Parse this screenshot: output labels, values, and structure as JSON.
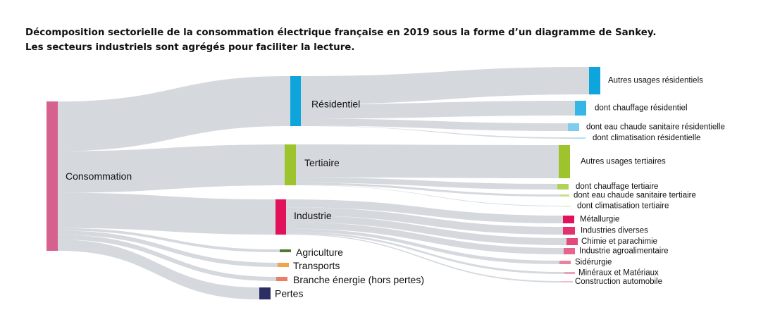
{
  "title_lines": [
    "Décomposition sectorielle de la consommation électrique française en 2019 sous la forme d’un diagramme de Sankey.",
    "Les secteurs industriels sont agrégés pour faciliter la lecture."
  ],
  "link_color": "#d3d7dc",
  "nodes": [
    {
      "id": "consommation",
      "label": "Consommation",
      "color": "#d6618f"
    },
    {
      "id": "residentiel",
      "label": "Résidentiel",
      "color": "#0ea5dc"
    },
    {
      "id": "tertiaire",
      "label": "Tertiaire",
      "color": "#9ec42d"
    },
    {
      "id": "industrie",
      "label": "Industrie",
      "color": "#e1125a"
    },
    {
      "id": "agriculture",
      "label": "Agriculture",
      "color": "#4f7a32"
    },
    {
      "id": "transports",
      "label": "Transports",
      "color": "#f0a54a"
    },
    {
      "id": "branche",
      "label": "Branche énergie (hors pertes)",
      "color": "#ea7e62"
    },
    {
      "id": "pertes",
      "label": "Pertes",
      "color": "#2c2d63"
    },
    {
      "id": "autres_res",
      "label": "Autres usages résidentiels",
      "color": "#0ea5dc"
    },
    {
      "id": "chauff_res",
      "label": "dont chauffage résidentiel",
      "color": "#35b6e6"
    },
    {
      "id": "ecs_res",
      "label": "dont eau chaude sanitaire résidentielle",
      "color": "#7fcdee"
    },
    {
      "id": "clim_res",
      "label": "dont climatisation résidentielle",
      "color": "#b3e0f5"
    },
    {
      "id": "autres_ter",
      "label": "Autres usages tertiaires",
      "color": "#9ec42d"
    },
    {
      "id": "chauff_ter",
      "label": "dont chauffage tertiaire",
      "color": "#b0d258"
    },
    {
      "id": "ecs_ter",
      "label": "dont eau chaude sanitaire tertiaire",
      "color": "#c7df8c"
    },
    {
      "id": "clim_ter",
      "label": "dont climatisation tertiaire",
      "color": "#dcecb5"
    },
    {
      "id": "metallurgie",
      "label": "Métallurgie",
      "color": "#e1125a"
    },
    {
      "id": "ind_div",
      "label": "Industries diverses",
      "color": "#e3306e"
    },
    {
      "id": "chimie",
      "label": "Chimie et parachimie",
      "color": "#e4497c"
    },
    {
      "id": "agroal",
      "label": "Industrie agroalimentaire",
      "color": "#e5658e"
    },
    {
      "id": "siderurgie",
      "label": "Sidérurgie",
      "color": "#e7829f"
    },
    {
      "id": "mineraux",
      "label": "Minéraux et Matériaux",
      "color": "#eba0b4"
    },
    {
      "id": "construction",
      "label": "Construction automobile",
      "color": "#efbfcc"
    }
  ],
  "links": [
    {
      "source": "consommation",
      "target": "residentiel",
      "value": 155
    },
    {
      "source": "consommation",
      "target": "tertiaire",
      "value": 130
    },
    {
      "source": "consommation",
      "target": "industrie",
      "value": 110
    },
    {
      "source": "consommation",
      "target": "agriculture",
      "value": 8
    },
    {
      "source": "consommation",
      "target": "transports",
      "value": 13
    },
    {
      "source": "consommation",
      "target": "branche",
      "value": 15
    },
    {
      "source": "consommation",
      "target": "pertes",
      "value": 35
    },
    {
      "source": "residentiel",
      "target": "autres_res",
      "value": 88
    },
    {
      "source": "residentiel",
      "target": "chauff_res",
      "value": 45
    },
    {
      "source": "residentiel",
      "target": "ecs_res",
      "value": 22
    },
    {
      "source": "residentiel",
      "target": "clim_res",
      "value": 1
    },
    {
      "source": "tertiaire",
      "target": "autres_ter",
      "value": 105
    },
    {
      "source": "tertiaire",
      "target": "chauff_ter",
      "value": 17
    },
    {
      "source": "tertiaire",
      "target": "ecs_ter",
      "value": 7
    },
    {
      "source": "tertiaire",
      "target": "clim_ter",
      "value": 1
    },
    {
      "source": "industrie",
      "target": "metallurgie",
      "value": 25
    },
    {
      "source": "industrie",
      "target": "ind_div",
      "value": 25
    },
    {
      "source": "industrie",
      "target": "chimie",
      "value": 22
    },
    {
      "source": "industrie",
      "target": "agroal",
      "value": 20
    },
    {
      "source": "industrie",
      "target": "siderurgie",
      "value": 10
    },
    {
      "source": "industrie",
      "target": "mineraux",
      "value": 6
    },
    {
      "source": "industrie",
      "target": "construction",
      "value": 3
    }
  ]
}
